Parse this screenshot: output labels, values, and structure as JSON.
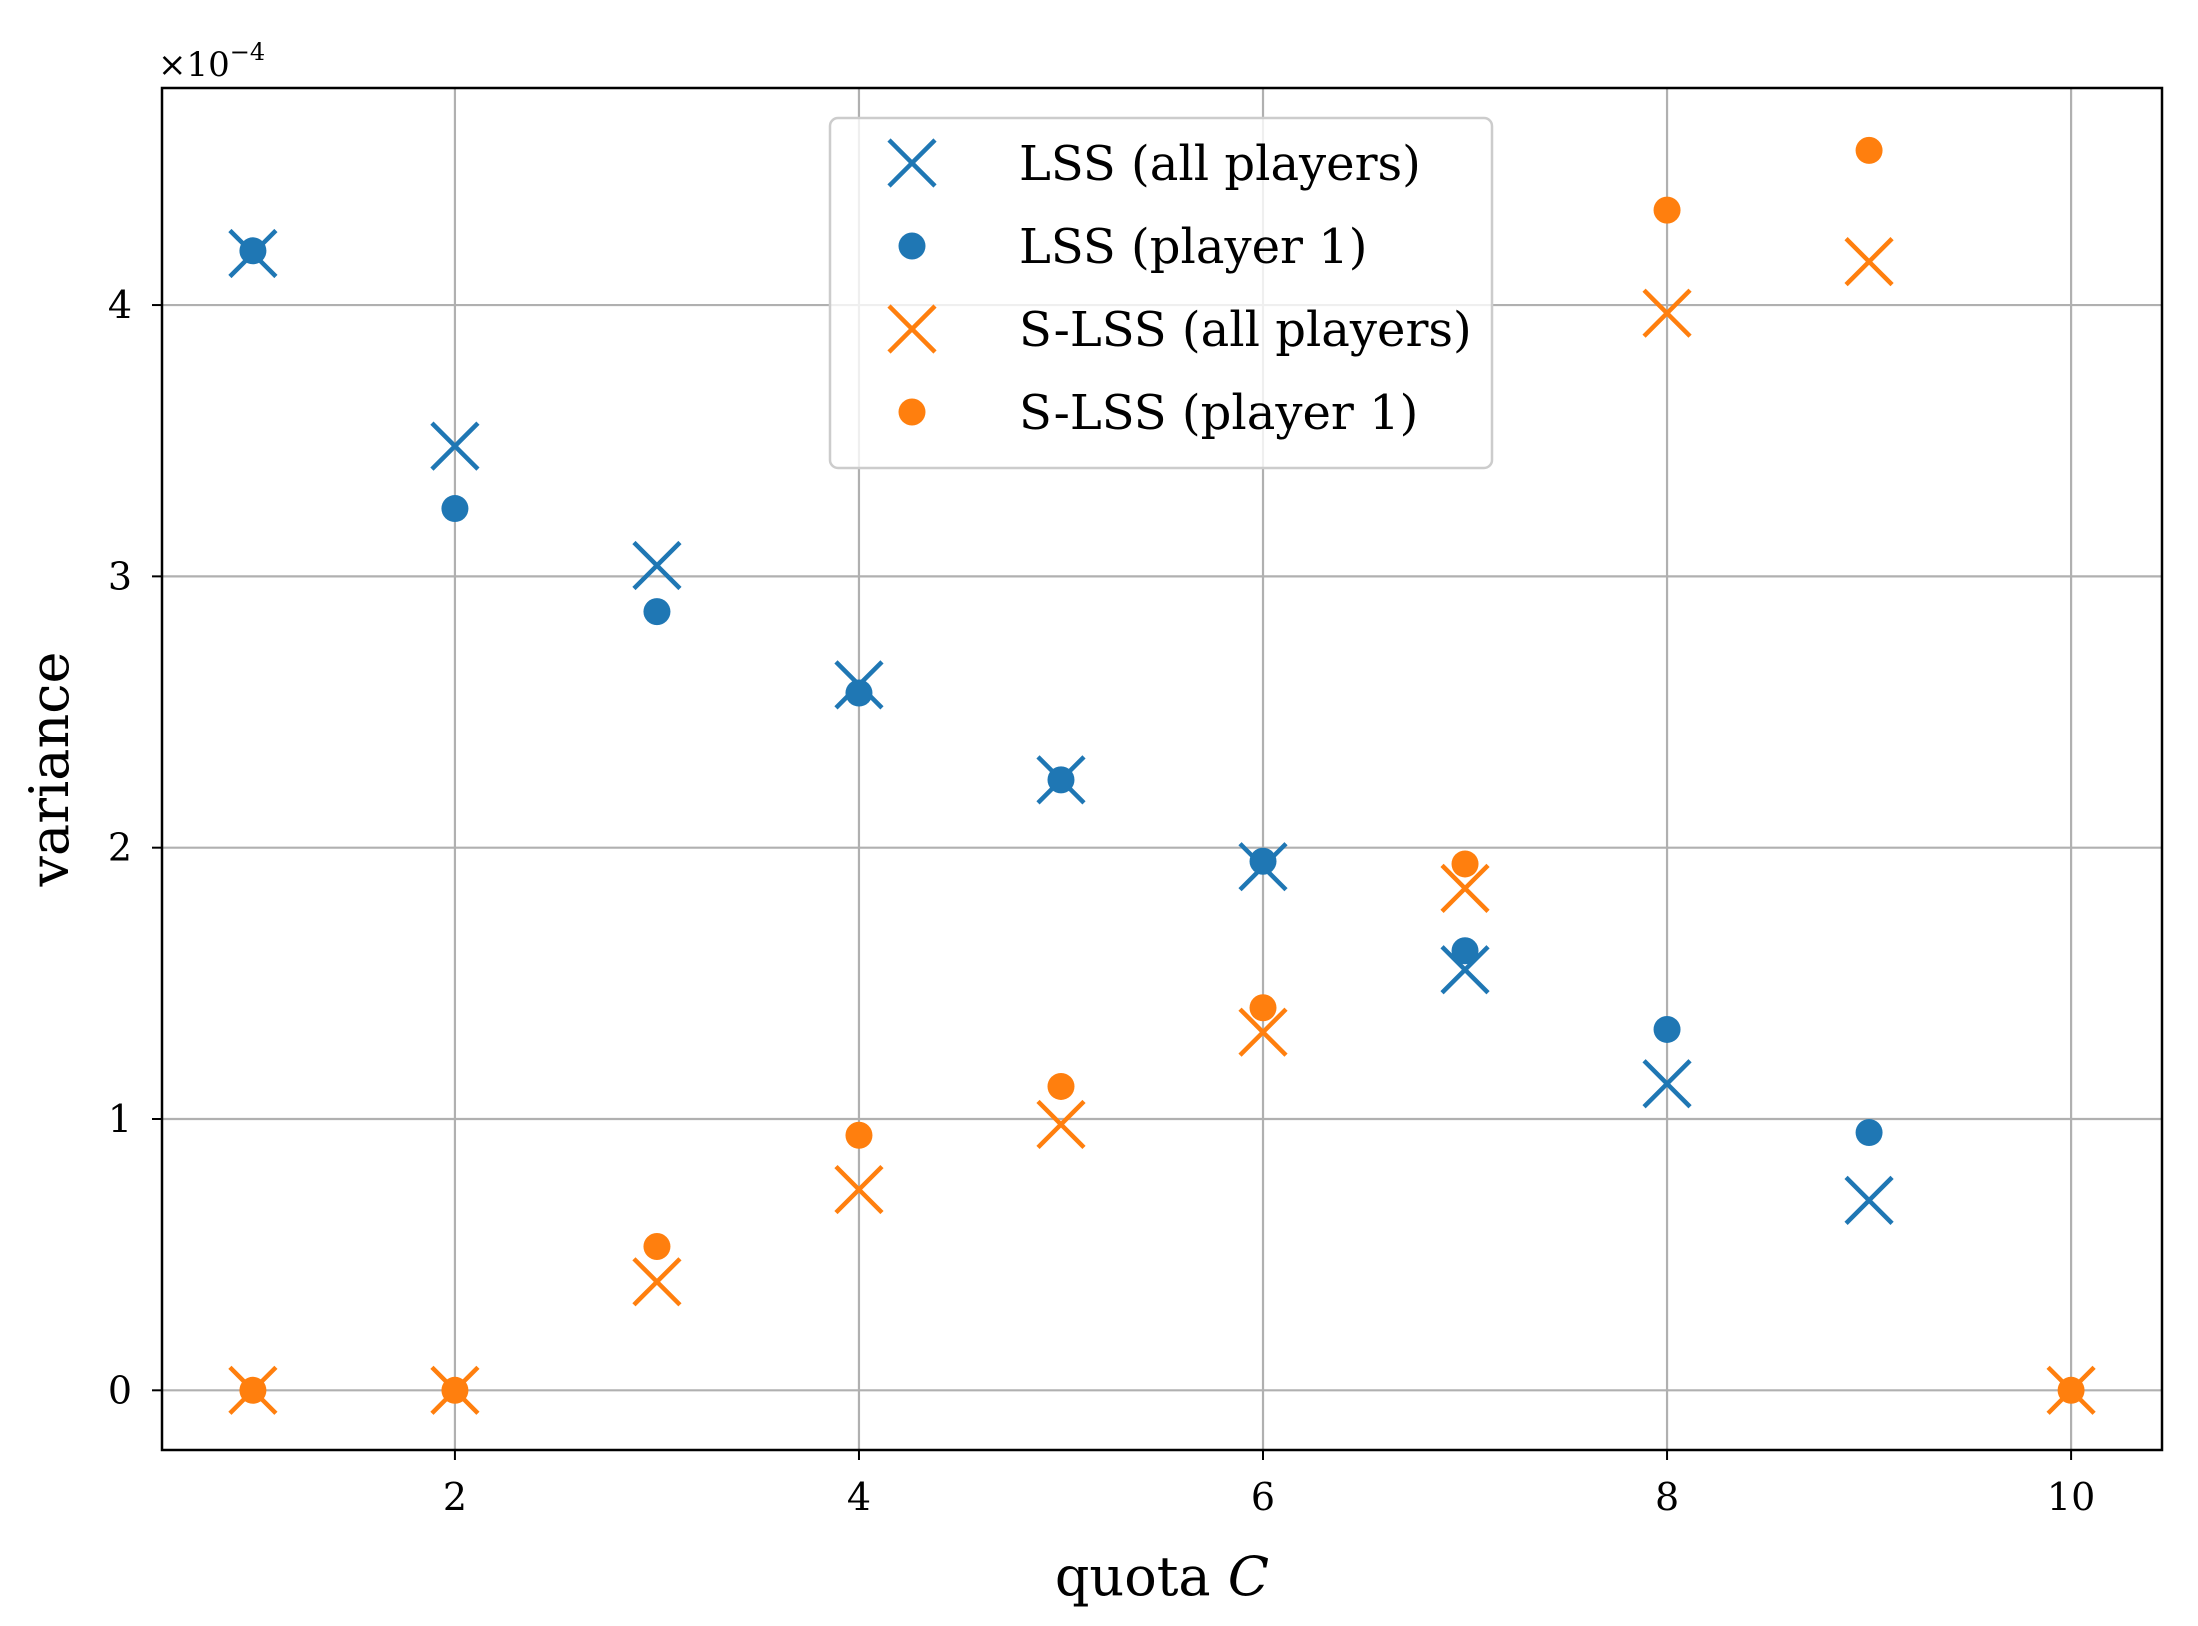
{
  "colors": {
    "blue": "#1f77b4",
    "orange": "#ff7f0e",
    "grid": "#b0b0b0"
  },
  "chart_data": {
    "type": "scatter",
    "title": "",
    "xlabel_text": "quota",
    "xlabel_var": "C",
    "ylabel": "variance",
    "y_offset_prefix": "×10",
    "y_offset_exponent": "−4",
    "xlim": [
      0.55,
      10.45
    ],
    "ylim": [
      -0.22,
      4.8
    ],
    "xticks": [
      2,
      4,
      6,
      8,
      10
    ],
    "yticks": [
      0,
      1,
      2,
      3,
      4
    ],
    "grid": true,
    "legend_position": "upper center",
    "series": [
      {
        "name": "LSS (all players)",
        "marker": "x",
        "color": "#1f77b4",
        "x": [
          1,
          2,
          3,
          4,
          5,
          6,
          7,
          8,
          9
        ],
        "y": [
          4.19,
          3.48,
          3.04,
          2.6,
          2.25,
          1.93,
          1.55,
          1.13,
          0.7
        ]
      },
      {
        "name": "LSS (player 1)",
        "marker": "o",
        "color": "#1f77b4",
        "x": [
          1,
          2,
          3,
          4,
          5,
          6,
          7,
          8,
          9
        ],
        "y": [
          4.2,
          3.25,
          2.87,
          2.57,
          2.25,
          1.95,
          1.62,
          1.33,
          0.95
        ]
      },
      {
        "name": "S-LSS (all players)",
        "marker": "x",
        "color": "#ff7f0e",
        "x": [
          1,
          2,
          3,
          4,
          5,
          6,
          7,
          8,
          9,
          10
        ],
        "y": [
          0,
          0,
          0.4,
          0.74,
          0.98,
          1.32,
          1.85,
          3.97,
          4.16,
          0
        ]
      },
      {
        "name": "S-LSS (player 1)",
        "marker": "o",
        "color": "#ff7f0e",
        "x": [
          1,
          2,
          3,
          4,
          5,
          6,
          7,
          8,
          9,
          10
        ],
        "y": [
          0,
          0,
          0.53,
          0.94,
          1.12,
          1.41,
          1.94,
          4.35,
          4.57,
          0
        ]
      }
    ]
  }
}
